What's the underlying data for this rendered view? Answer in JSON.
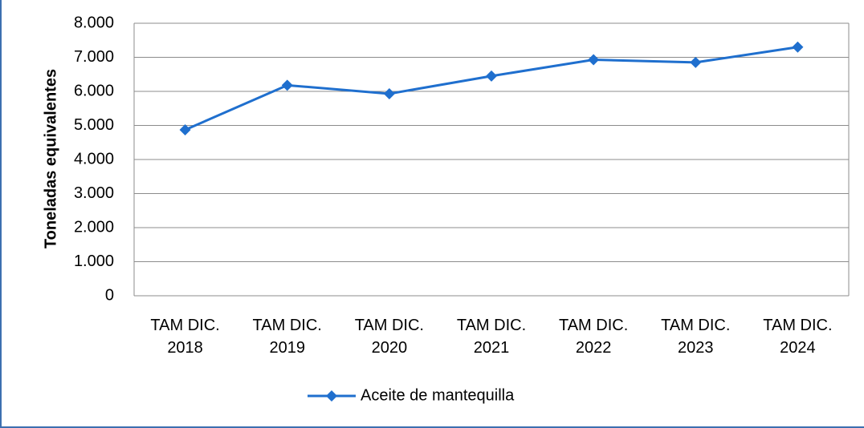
{
  "chart_data": {
    "type": "line",
    "ylabel": "Toneladas equivalentes",
    "categories": [
      "TAM DIC. 2018",
      "TAM DIC. 2019",
      "TAM DIC. 2020",
      "TAM DIC. 2021",
      "TAM DIC. 2022",
      "TAM DIC. 2023",
      "TAM DIC. 2024"
    ],
    "series": [
      {
        "name": "Aceite de mantequilla",
        "color": "#1f6fce",
        "values": [
          4870,
          6180,
          5930,
          6450,
          6930,
          6850,
          7300
        ]
      }
    ],
    "ylim": [
      0,
      8000
    ],
    "yticks": [
      0,
      {
        "value": 1000,
        "label": "1.000"
      },
      {
        "value": 2000,
        "label": "2.000"
      },
      {
        "value": 3000,
        "label": "3.000"
      },
      {
        "value": 4000,
        "label": "4.000"
      },
      {
        "value": 5000,
        "label": "5.000"
      },
      {
        "value": 6000,
        "label": "6.000"
      },
      {
        "value": 7000,
        "label": "7.000"
      },
      {
        "value": 8000,
        "label": "8.000"
      }
    ],
    "grid": true,
    "legend": "bottom"
  }
}
